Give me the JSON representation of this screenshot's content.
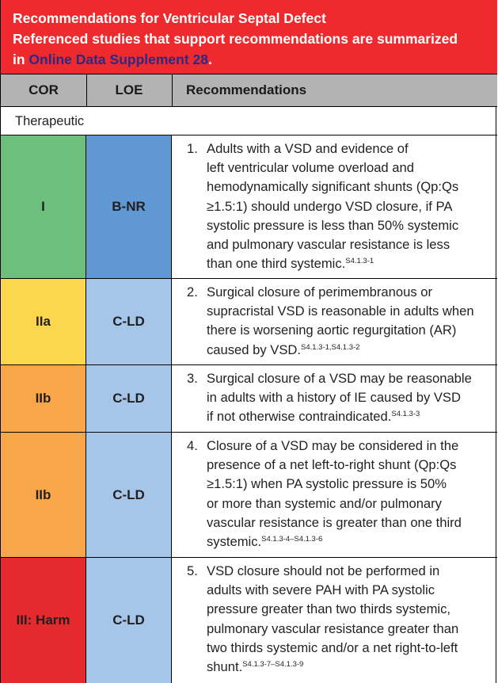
{
  "banner": {
    "title": "Recommendations for Ventricular Septal Defect",
    "subtitle_part1": "Referenced studies that support recommendations are summarized",
    "subtitle_in": "in ",
    "subtitle_link": "Online Data Supplement 28",
    "subtitle_end": "."
  },
  "table_header": {
    "cor": "COR",
    "loe": "LOE",
    "recommendations": "Recommendations"
  },
  "section_label": "Therapeutic",
  "rows": [
    {
      "cor": "I",
      "loe": "B-NR",
      "number": "1.",
      "lines": [
        "Adults with a VSD and evidence of",
        "left ventricular volume overload and",
        "hemodynamically significant shunts (Qp:Qs",
        "≥1.5:1) should undergo VSD closure, if PA",
        "systolic pressure is less than 50% systemic",
        "and pulmonary vascular resistance is less",
        "than one third systemic."
      ],
      "ref": "S4.1.3-1"
    },
    {
      "cor": "IIa",
      "loe": "C-LD",
      "number": "2.",
      "lines": [
        "Surgical closure of perimembranous or",
        "supracristal VSD is reasonable in adults when",
        "there is worsening aortic regurgitation (AR)",
        "caused by VSD."
      ],
      "ref": "S4.1.3-1,S4.1.3-2"
    },
    {
      "cor": "IIb",
      "loe": "C-LD",
      "number": "3.",
      "lines": [
        "Surgical closure of a VSD may be reasonable",
        "in adults with a history of IE caused by VSD",
        "if not otherwise contraindicated."
      ],
      "ref": "S4.1.3-3"
    },
    {
      "cor": "IIb",
      "loe": "C-LD",
      "number": "4.",
      "lines": [
        "Closure of a VSD may be considered in the",
        "presence of a net left-to-right shunt (Qp:Qs",
        "≥1.5:1) when PA systolic pressure is 50%",
        "or more than systemic and/or pulmonary",
        "vascular resistance is greater than one third",
        "systemic."
      ],
      "ref": "S4.1.3-4–S4.1.3-6"
    },
    {
      "cor": "III: Harm",
      "loe": "C-LD",
      "number": "5.",
      "lines": [
        "VSD closure should not be performed in",
        "adults with severe PAH with PA systolic",
        "pressure greater than two thirds systemic,",
        "pulmonary vascular resistance greater than",
        "two thirds systemic and/or a net right-to-left",
        "shunt."
      ],
      "ref": "S4.1.3-7–S4.1.3-9"
    }
  ],
  "colors": {
    "banner_red": "#ee2a2e",
    "link_blue": "#2b2a82",
    "header_gray": "#b3b3b3",
    "cor_I_green": "#6cc07b",
    "cor_IIa_yellow": "#fcd64d",
    "cor_IIb_orange": "#f7a64a",
    "cor_III_red": "#e52a2e",
    "loe_BNR_blue": "#5f98d2",
    "loe_CLD_lightblue": "#a5c6e9"
  }
}
